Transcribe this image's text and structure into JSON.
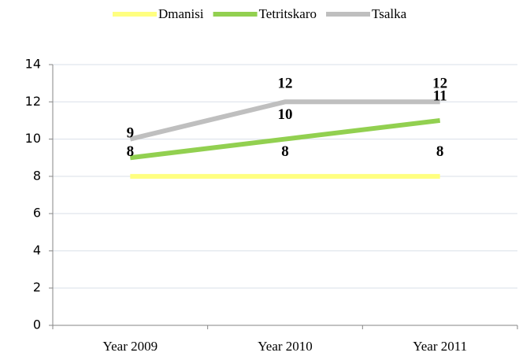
{
  "chart_data": {
    "type": "line",
    "categories": [
      "Year 2009",
      "Year 2010",
      "Year 2011"
    ],
    "series": [
      {
        "name": "Dmanisi",
        "color": "#ffff80",
        "values": [
          8,
          8,
          8
        ],
        "value_labels": [
          "8",
          "8",
          "8"
        ]
      },
      {
        "name": "Tetritskaro",
        "color": "#92d050",
        "values": [
          9,
          10,
          11
        ],
        "value_labels": [
          "9",
          "10",
          "11"
        ]
      },
      {
        "name": "Tsalka",
        "color": "#bfbfbf",
        "values": [
          10,
          12,
          12
        ],
        "value_labels": [
          null,
          "12",
          "12"
        ]
      }
    ],
    "ylim": [
      0,
      14
    ],
    "yticks": [
      0,
      2,
      4,
      6,
      8,
      10,
      12,
      14
    ],
    "grid": true,
    "legend": "top"
  }
}
